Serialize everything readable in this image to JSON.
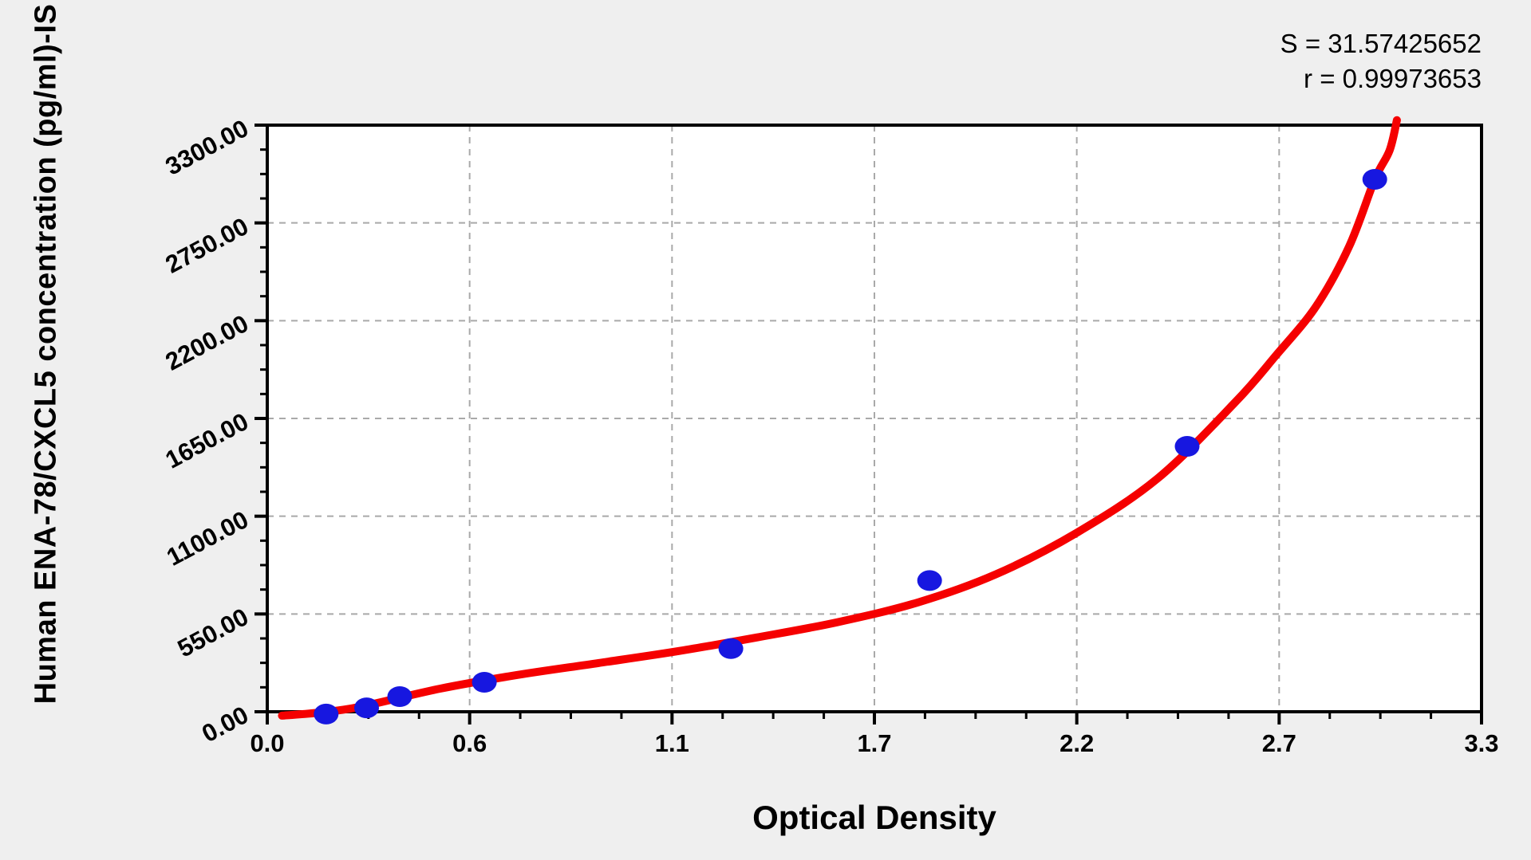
{
  "stats": {
    "s_line": "S = 31.57425652",
    "r_line": "r = 0.99973653"
  },
  "chart_data": {
    "type": "scatter",
    "title": "",
    "xlabel": "Optical Density",
    "ylabel": "Human ENA-78/CXCL5 concentration (pg/ml)-IS",
    "annotations": [
      "S = 31.57425652",
      "r = 0.99973653"
    ],
    "fit_stats": {
      "S": "31.57425652",
      "r": "0.99973653"
    },
    "x_axis": {
      "min": 0,
      "max": 3.3,
      "tick_values": [
        0,
        0.55,
        1.1,
        1.65,
        2.2,
        2.75,
        3.3
      ],
      "tick_labels": [
        "0.0",
        "0.6",
        "1.1",
        "1.7",
        "2.2",
        "2.7",
        "3.3"
      ],
      "minor_ticks_per_gap": 3
    },
    "y_axis": {
      "min": 0,
      "max": 3300,
      "tick_values": [
        0,
        550,
        1100,
        1650,
        2200,
        2750,
        3300
      ],
      "tick_labels": [
        "0.00",
        "550.00",
        "1100.00",
        "1650.00",
        "2200.00",
        "2750.00",
        "3300.00"
      ],
      "minor_ticks_per_gap": 3
    },
    "grid": "dashed-major",
    "legend": "none",
    "series": [
      {
        "name": "standard-points",
        "type": "scatter",
        "color": "#1717e0",
        "points": [
          [
            0.16,
            -13
          ],
          [
            0.27,
            22
          ],
          [
            0.36,
            85
          ],
          [
            0.59,
            166
          ],
          [
            1.26,
            355
          ],
          [
            1.8,
            738
          ],
          [
            2.5,
            1493
          ],
          [
            3.01,
            2995
          ]
        ]
      },
      {
        "name": "fitted-curve",
        "type": "line",
        "color": "#f50000",
        "points": [
          [
            0.04,
            -22
          ],
          [
            0.14,
            -5
          ],
          [
            0.25,
            27
          ],
          [
            0.47,
            130
          ],
          [
            0.68,
            207
          ],
          [
            0.9,
            274
          ],
          [
            1.12,
            342
          ],
          [
            1.33,
            418
          ],
          [
            1.55,
            504
          ],
          [
            1.77,
            616
          ],
          [
            1.98,
            773
          ],
          [
            2.2,
            1007
          ],
          [
            2.42,
            1313
          ],
          [
            2.63,
            1740
          ],
          [
            2.74,
            2001
          ],
          [
            2.85,
            2280
          ],
          [
            2.94,
            2617
          ],
          [
            3.01,
            2995
          ],
          [
            3.05,
            3157
          ],
          [
            3.07,
            3328
          ]
        ]
      }
    ],
    "colors": {
      "background": "#efefef",
      "plot_background": "#ffffff",
      "axis": "#000000",
      "grid": "#a9a9a9",
      "curve": "#f50000",
      "points": "#1717e0"
    }
  }
}
